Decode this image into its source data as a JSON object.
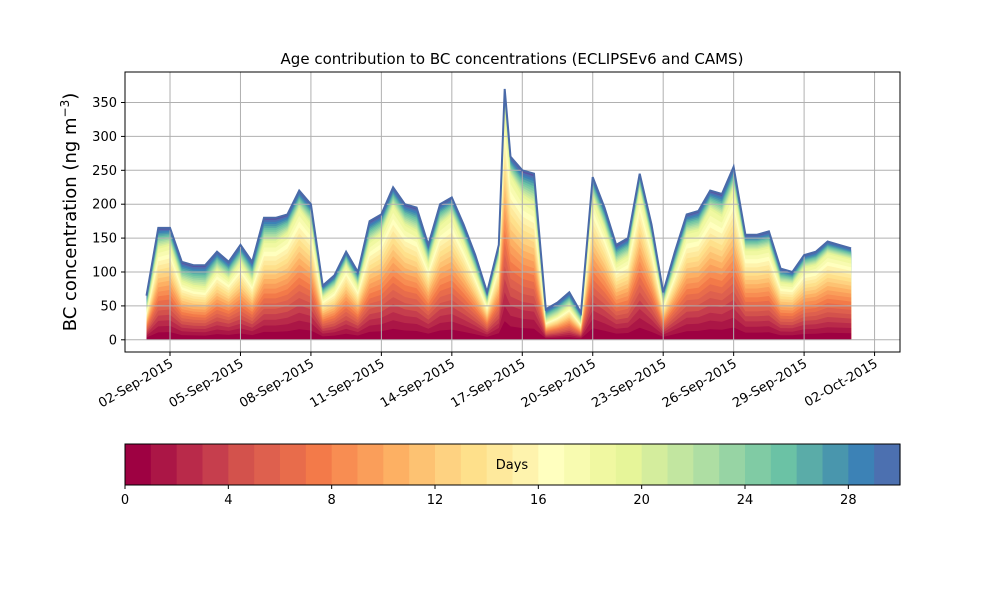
{
  "chart_data": {
    "type": "area",
    "stacked": true,
    "title": "Age contribution to BC concentrations (ECLIPSEv6 and CAMS)",
    "ylabel": "BC concentration (ng m",
    "ylabel_superscript": "−3",
    "ylabel_close": ")",
    "xlabel": "",
    "ylim": [
      -18,
      395
    ],
    "yticks": [
      "0",
      "50",
      "100",
      "150",
      "200",
      "250",
      "300",
      "350"
    ],
    "ytick_values": [
      0,
      50,
      100,
      150,
      200,
      250,
      300,
      350
    ],
    "xlim": [
      "2015-08-31T02:00",
      "2015-10-03T02:00"
    ],
    "xticks": [
      "02-Sep-2015",
      "05-Sep-2015",
      "08-Sep-2015",
      "11-Sep-2015",
      "14-Sep-2015",
      "17-Sep-2015",
      "20-Sep-2015",
      "23-Sep-2015",
      "26-Sep-2015",
      "29-Sep-2015",
      "02-Oct-2015"
    ],
    "xtick_dates": [
      "2015-09-02",
      "2015-09-05",
      "2015-09-08",
      "2015-09-11",
      "2015-09-14",
      "2015-09-17",
      "2015-09-20",
      "2015-09-23",
      "2015-09-26",
      "2015-09-29",
      "2015-10-02"
    ],
    "grid": true,
    "colormap": "Spectral",
    "colors": [
      "#9e0142",
      "#ab1646",
      "#b92a4a",
      "#c63e4d",
      "#d3524c",
      "#de604e",
      "#e86c4b",
      "#f37a49",
      "#f88d52",
      "#fa9e5a",
      "#fdb063",
      "#fdc272",
      "#fed281",
      "#fee08b",
      "#fee99c",
      "#fef3ad",
      "#ffffbf",
      "#f8fbb0",
      "#f0f8a1",
      "#e6f599",
      "#d4ed9d",
      "#c2e6a0",
      "#aedea3",
      "#97d4a4",
      "#80cba4",
      "#6bc2a5",
      "#5aaca8",
      "#4996ad",
      "#3c82b6",
      "#4c70b0",
      "#5e4fa2"
    ],
    "x": [
      "2015-09-01T00:00",
      "2015-09-01T12:00",
      "2015-09-02T00:00",
      "2015-09-02T12:00",
      "2015-09-03T00:00",
      "2015-09-03T12:00",
      "2015-09-04T00:00",
      "2015-09-04T12:00",
      "2015-09-05T00:00",
      "2015-09-05T12:00",
      "2015-09-06T00:00",
      "2015-09-06T12:00",
      "2015-09-07T00:00",
      "2015-09-07T12:00",
      "2015-09-08T00:00",
      "2015-09-08T12:00",
      "2015-09-09T00:00",
      "2015-09-09T12:00",
      "2015-09-10T00:00",
      "2015-09-10T12:00",
      "2015-09-11T00:00",
      "2015-09-11T12:00",
      "2015-09-12T00:00",
      "2015-09-12T12:00",
      "2015-09-13T00:00",
      "2015-09-13T12:00",
      "2015-09-14T00:00",
      "2015-09-14T12:00",
      "2015-09-15T00:00",
      "2015-09-15T12:00",
      "2015-09-16T00:00",
      "2015-09-16T06:00",
      "2015-09-16T12:00",
      "2015-09-17T00:00",
      "2015-09-17T12:00",
      "2015-09-18T00:00",
      "2015-09-18T12:00",
      "2015-09-19T00:00",
      "2015-09-19T12:00",
      "2015-09-20T00:00",
      "2015-09-20T12:00",
      "2015-09-21T00:00",
      "2015-09-21T12:00",
      "2015-09-22T00:00",
      "2015-09-22T12:00",
      "2015-09-23T00:00",
      "2015-09-23T12:00",
      "2015-09-24T00:00",
      "2015-09-24T12:00",
      "2015-09-25T00:00",
      "2015-09-25T12:00",
      "2015-09-26T00:00",
      "2015-09-26T12:00",
      "2015-09-27T00:00",
      "2015-09-27T12:00",
      "2015-09-28T00:00",
      "2015-09-28T12:00",
      "2015-09-29T00:00",
      "2015-09-29T12:00",
      "2015-09-30T00:00",
      "2015-09-30T12:00",
      "2015-10-01T00:00"
    ],
    "total": [
      65,
      165,
      165,
      115,
      110,
      110,
      130,
      115,
      140,
      115,
      180,
      180,
      185,
      220,
      200,
      80,
      95,
      130,
      100,
      175,
      185,
      225,
      200,
      195,
      140,
      200,
      210,
      170,
      125,
      70,
      140,
      370,
      270,
      250,
      245,
      45,
      55,
      70,
      40,
      240,
      195,
      140,
      150,
      245,
      170,
      70,
      130,
      185,
      190,
      220,
      215,
      255,
      155,
      155,
      160,
      105,
      100,
      125,
      130,
      145,
      140,
      135
    ],
    "old_share": [
      0.35,
      0.18,
      0.15,
      0.25,
      0.28,
      0.3,
      0.2,
      0.22,
      0.18,
      0.25,
      0.2,
      0.2,
      0.15,
      0.12,
      0.15,
      0.22,
      0.2,
      0.15,
      0.22,
      0.18,
      0.15,
      0.12,
      0.15,
      0.18,
      0.2,
      0.15,
      0.12,
      0.15,
      0.2,
      0.25,
      0.15,
      0.08,
      0.1,
      0.15,
      0.18,
      0.4,
      0.35,
      0.3,
      0.4,
      0.12,
      0.15,
      0.2,
      0.18,
      0.1,
      0.15,
      0.25,
      0.2,
      0.15,
      0.15,
      0.12,
      0.15,
      0.12,
      0.15,
      0.15,
      0.15,
      0.2,
      0.18,
      0.15,
      0.15,
      0.12,
      0.12,
      0.12
    ],
    "colorbar": {
      "label": "Days",
      "ticks": [
        "0",
        "4",
        "8",
        "12",
        "16",
        "20",
        "24",
        "28"
      ],
      "tick_values": [
        0,
        4,
        8,
        12,
        16,
        20,
        24,
        28
      ],
      "range": [
        0,
        30
      ],
      "bins": 30
    }
  }
}
